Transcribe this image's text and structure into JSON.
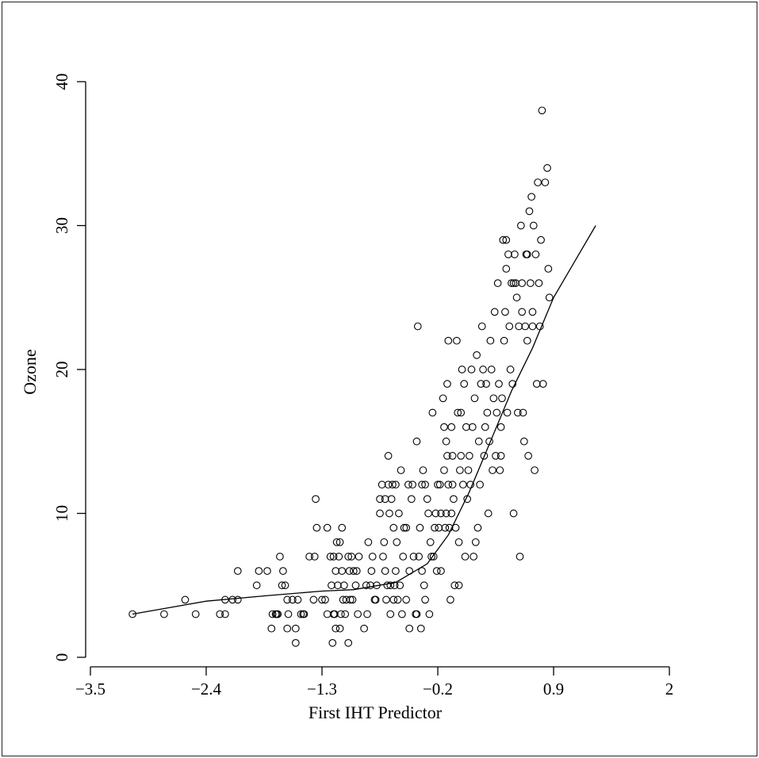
{
  "chart_data": {
    "type": "scatter",
    "title": "",
    "xlabel": "First IHT Predictor",
    "ylabel": "Ozone",
    "xlim": [
      -3.5,
      2
    ],
    "ylim": [
      0,
      40
    ],
    "x_ticks": [
      "-3.5",
      "-2.4",
      "-1.3",
      "-0.2",
      "0.9",
      "2"
    ],
    "y_ticks": [
      "0",
      "10",
      "20",
      "30",
      "40"
    ],
    "grid": false,
    "legend": "none",
    "series": [
      {
        "kind": "points",
        "points": [
          [
            -3.1,
            3
          ],
          [
            -2.8,
            3
          ],
          [
            -2.6,
            4
          ],
          [
            -2.5,
            3
          ],
          [
            -2.27,
            3
          ],
          [
            -2.22,
            3
          ],
          [
            -2.22,
            4
          ],
          [
            -2.15,
            4
          ],
          [
            -2.1,
            4
          ],
          [
            -2.1,
            6
          ],
          [
            -1.92,
            5
          ],
          [
            -1.9,
            6
          ],
          [
            -1.82,
            6
          ],
          [
            -1.78,
            2
          ],
          [
            -1.77,
            3
          ],
          [
            -1.74,
            3
          ],
          [
            -1.73,
            3
          ],
          [
            -1.72,
            3
          ],
          [
            -1.7,
            7
          ],
          [
            -1.68,
            5
          ],
          [
            -1.67,
            6
          ],
          [
            -1.65,
            5
          ],
          [
            -1.63,
            2
          ],
          [
            -1.63,
            4
          ],
          [
            -1.62,
            3
          ],
          [
            -1.58,
            4
          ],
          [
            -1.55,
            1
          ],
          [
            -1.55,
            2
          ],
          [
            -1.53,
            4
          ],
          [
            -1.5,
            3
          ],
          [
            -1.48,
            3
          ],
          [
            -1.47,
            3
          ],
          [
            -1.42,
            7
          ],
          [
            -1.38,
            4
          ],
          [
            -1.37,
            7
          ],
          [
            -1.36,
            11
          ],
          [
            -1.35,
            9
          ],
          [
            -1.3,
            4
          ],
          [
            -1.27,
            4
          ],
          [
            -1.25,
            9
          ],
          [
            -1.25,
            3
          ],
          [
            -1.22,
            7
          ],
          [
            -1.21,
            5
          ],
          [
            -1.2,
            1
          ],
          [
            -1.19,
            7
          ],
          [
            -1.19,
            3
          ],
          [
            -1.18,
            3
          ],
          [
            -1.17,
            2
          ],
          [
            -1.17,
            6
          ],
          [
            -1.16,
            8
          ],
          [
            -1.15,
            5
          ],
          [
            -1.14,
            7
          ],
          [
            -1.13,
            2
          ],
          [
            -1.13,
            8
          ],
          [
            -1.12,
            3
          ],
          [
            -1.11,
            6
          ],
          [
            -1.11,
            9
          ],
          [
            -1.1,
            4
          ],
          [
            -1.09,
            5
          ],
          [
            -1.08,
            3
          ],
          [
            -1.07,
            4
          ],
          [
            -1.05,
            1
          ],
          [
            -1.05,
            7
          ],
          [
            -1.04,
            6
          ],
          [
            -1.03,
            4
          ],
          [
            -1.02,
            7
          ],
          [
            -1.01,
            4
          ],
          [
            -1.0,
            6
          ],
          [
            -0.98,
            5
          ],
          [
            -0.97,
            6
          ],
          [
            -0.96,
            3
          ],
          [
            -0.95,
            7
          ],
          [
            -0.9,
            2
          ],
          [
            -0.88,
            5
          ],
          [
            -0.87,
            3
          ],
          [
            -0.86,
            8
          ],
          [
            -0.84,
            5
          ],
          [
            -0.83,
            6
          ],
          [
            -0.82,
            7
          ],
          [
            -0.8,
            4
          ],
          [
            -0.79,
            4
          ],
          [
            -0.78,
            5
          ],
          [
            -0.75,
            10
          ],
          [
            -0.75,
            11
          ],
          [
            -0.73,
            12
          ],
          [
            -0.72,
            7
          ],
          [
            -0.71,
            8
          ],
          [
            -0.7,
            11
          ],
          [
            -0.7,
            6
          ],
          [
            -0.69,
            4
          ],
          [
            -0.68,
            5
          ],
          [
            -0.67,
            14
          ],
          [
            -0.67,
            12
          ],
          [
            -0.66,
            10
          ],
          [
            -0.65,
            3
          ],
          [
            -0.65,
            5
          ],
          [
            -0.64,
            11
          ],
          [
            -0.63,
            12
          ],
          [
            -0.62,
            4
          ],
          [
            -0.62,
            9
          ],
          [
            -0.61,
            5
          ],
          [
            -0.6,
            6
          ],
          [
            -0.6,
            12
          ],
          [
            -0.59,
            8
          ],
          [
            -0.58,
            4
          ],
          [
            -0.57,
            10
          ],
          [
            -0.56,
            5
          ],
          [
            -0.55,
            13
          ],
          [
            -0.54,
            3
          ],
          [
            -0.53,
            7
          ],
          [
            -0.52,
            9
          ],
          [
            -0.5,
            9
          ],
          [
            -0.5,
            4
          ],
          [
            -0.48,
            12
          ],
          [
            -0.47,
            6
          ],
          [
            -0.47,
            2
          ],
          [
            -0.45,
            11
          ],
          [
            -0.44,
            12
          ],
          [
            -0.43,
            7
          ],
          [
            -0.41,
            3
          ],
          [
            -0.4,
            15
          ],
          [
            -0.4,
            3
          ],
          [
            -0.39,
            23
          ],
          [
            -0.38,
            7
          ],
          [
            -0.37,
            9
          ],
          [
            -0.36,
            2
          ],
          [
            -0.35,
            12
          ],
          [
            -0.35,
            6
          ],
          [
            -0.34,
            13
          ],
          [
            -0.33,
            5
          ],
          [
            -0.32,
            12
          ],
          [
            -0.32,
            4
          ],
          [
            -0.3,
            11
          ],
          [
            -0.29,
            10
          ],
          [
            -0.28,
            3
          ],
          [
            -0.27,
            8
          ],
          [
            -0.26,
            7
          ],
          [
            -0.25,
            17
          ],
          [
            -0.24,
            7
          ],
          [
            -0.23,
            9
          ],
          [
            -0.22,
            10
          ],
          [
            -0.21,
            6
          ],
          [
            -0.2,
            12
          ],
          [
            -0.19,
            9
          ],
          [
            -0.18,
            12
          ],
          [
            -0.17,
            10
          ],
          [
            -0.17,
            6
          ],
          [
            -0.15,
            18
          ],
          [
            -0.14,
            16
          ],
          [
            -0.14,
            13
          ],
          [
            -0.13,
            9
          ],
          [
            -0.12,
            15
          ],
          [
            -0.12,
            10
          ],
          [
            -0.11,
            14
          ],
          [
            -0.11,
            19
          ],
          [
            -0.1,
            12
          ],
          [
            -0.1,
            22
          ],
          [
            -0.09,
            9
          ],
          [
            -0.08,
            4
          ],
          [
            -0.07,
            10
          ],
          [
            -0.07,
            16
          ],
          [
            -0.06,
            12
          ],
          [
            -0.06,
            14
          ],
          [
            -0.05,
            11
          ],
          [
            -0.04,
            5
          ],
          [
            -0.03,
            9
          ],
          [
            -0.02,
            22
          ],
          [
            -0.01,
            17
          ],
          [
            0.0,
            8
          ],
          [
            0.0,
            5
          ],
          [
            0.01,
            13
          ],
          [
            0.02,
            14
          ],
          [
            0.02,
            17
          ],
          [
            0.03,
            20
          ],
          [
            0.04,
            12
          ],
          [
            0.05,
            19
          ],
          [
            0.06,
            7
          ],
          [
            0.07,
            16
          ],
          [
            0.08,
            11
          ],
          [
            0.09,
            13
          ],
          [
            0.1,
            14
          ],
          [
            0.11,
            12
          ],
          [
            0.12,
            20
          ],
          [
            0.13,
            16
          ],
          [
            0.14,
            7
          ],
          [
            0.15,
            18
          ],
          [
            0.16,
            8
          ],
          [
            0.17,
            21
          ],
          [
            0.18,
            9
          ],
          [
            0.19,
            15
          ],
          [
            0.2,
            12
          ],
          [
            0.21,
            19
          ],
          [
            0.22,
            23
          ],
          [
            0.23,
            20
          ],
          [
            0.24,
            14
          ],
          [
            0.25,
            16
          ],
          [
            0.26,
            19
          ],
          [
            0.27,
            17
          ],
          [
            0.28,
            10
          ],
          [
            0.29,
            15
          ],
          [
            0.3,
            22
          ],
          [
            0.31,
            20
          ],
          [
            0.32,
            13
          ],
          [
            0.33,
            18
          ],
          [
            0.34,
            24
          ],
          [
            0.35,
            14
          ],
          [
            0.36,
            17
          ],
          [
            0.37,
            26
          ],
          [
            0.38,
            19
          ],
          [
            0.39,
            13
          ],
          [
            0.4,
            14
          ],
          [
            0.41,
            18
          ],
          [
            0.42,
            29
          ],
          [
            0.43,
            22
          ],
          [
            0.44,
            24
          ],
          [
            0.45,
            27
          ],
          [
            0.46,
            17
          ],
          [
            0.47,
            28
          ],
          [
            0.48,
            23
          ],
          [
            0.49,
            20
          ],
          [
            0.5,
            26
          ],
          [
            0.51,
            19
          ],
          [
            0.52,
            10
          ],
          [
            0.53,
            28
          ],
          [
            0.54,
            26
          ],
          [
            0.55,
            25
          ],
          [
            0.56,
            17
          ],
          [
            0.57,
            23
          ],
          [
            0.58,
            7
          ],
          [
            0.59,
            30
          ],
          [
            0.6,
            26
          ],
          [
            0.61,
            17
          ],
          [
            0.62,
            15
          ],
          [
            0.63,
            23
          ],
          [
            0.64,
            28
          ],
          [
            0.65,
            22
          ],
          [
            0.66,
            14
          ],
          [
            0.67,
            31
          ],
          [
            0.68,
            26
          ],
          [
            0.69,
            32
          ],
          [
            0.7,
            23
          ],
          [
            0.71,
            30
          ],
          [
            0.72,
            13
          ],
          [
            0.73,
            28
          ],
          [
            0.74,
            19
          ],
          [
            0.75,
            33
          ],
          [
            0.76,
            26
          ],
          [
            0.77,
            23
          ],
          [
            0.78,
            29
          ],
          [
            0.79,
            38
          ],
          [
            0.8,
            19
          ],
          [
            0.82,
            33
          ],
          [
            0.84,
            34
          ],
          [
            0.85,
            27
          ],
          [
            0.86,
            25
          ],
          [
            0.4,
            16
          ],
          [
            0.45,
            29
          ],
          [
            0.52,
            26
          ],
          [
            0.6,
            24
          ],
          [
            0.65,
            28
          ],
          [
            0.7,
            24
          ]
        ]
      },
      {
        "kind": "line",
        "points": [
          [
            -3.1,
            3.0
          ],
          [
            -2.4,
            3.9
          ],
          [
            -1.8,
            4.3
          ],
          [
            -1.3,
            4.6
          ],
          [
            -1.0,
            4.7
          ],
          [
            -0.6,
            5.2
          ],
          [
            -0.3,
            6.5
          ],
          [
            -0.1,
            8.5
          ],
          [
            0.1,
            11.5
          ],
          [
            0.3,
            15.0
          ],
          [
            0.5,
            18.5
          ],
          [
            0.7,
            21.5
          ],
          [
            0.9,
            25.0
          ],
          [
            1.1,
            27.5
          ],
          [
            1.3,
            30.0
          ]
        ]
      }
    ]
  }
}
